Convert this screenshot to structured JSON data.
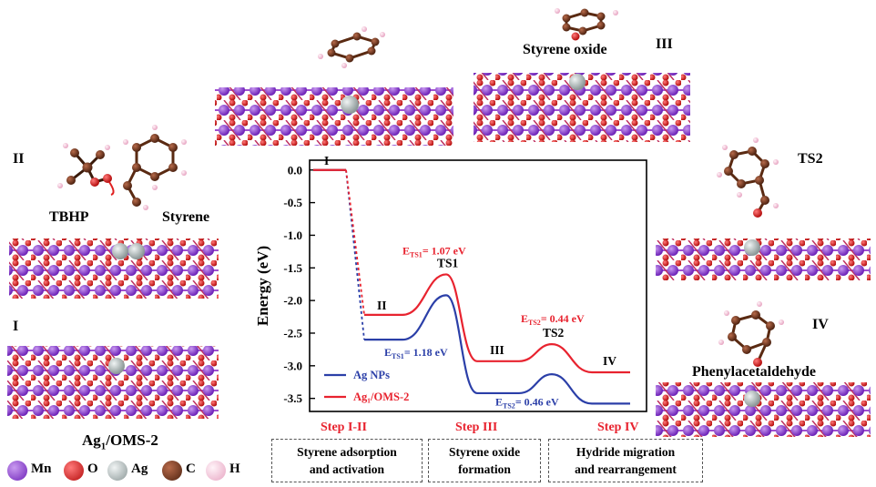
{
  "panels": {
    "I": "I",
    "II": "II",
    "III": "III",
    "IV": "IV",
    "TS2": "TS2",
    "tbhp": "TBHP",
    "styrene": "Styrene",
    "styrene_oxide": "Styrene oxide",
    "phenylacetaldehyde": "Phenylacetaldehyde",
    "catalyst": "Ag₁/OMS-2"
  },
  "steps": [
    {
      "label": "Step I-II",
      "desc1": "Styrene adsorption",
      "desc2": "and activation"
    },
    {
      "label": "Step III",
      "desc1": "Styrene oxide",
      "desc2": "formation"
    },
    {
      "label": "Step IV",
      "desc1": "Hydride migration",
      "desc2": "and rearrangement"
    }
  ],
  "atom_legend": [
    {
      "symbol": "Mn",
      "color": "#8a3fd1"
    },
    {
      "symbol": "O",
      "color": "#e02020"
    },
    {
      "symbol": "Ag",
      "color": "#a9b4b4"
    },
    {
      "symbol": "C",
      "color": "#7a3b22"
    },
    {
      "symbol": "H",
      "color": "#f4c6da"
    }
  ],
  "chart_data": {
    "type": "line",
    "ylabel": "Energy (eV)",
    "ylim": [
      -3.7,
      0.15
    ],
    "yticks": [
      "0.0",
      "-0.5",
      "-1.0",
      "-1.5",
      "-2.0",
      "-2.5",
      "-3.0",
      "-3.5"
    ],
    "series": [
      {
        "name": "Ag NPs",
        "color": "#2b3fa8",
        "points": [
          {
            "state": "I",
            "energy": 0.0
          },
          {
            "state": "II",
            "energy": -2.6
          },
          {
            "state": "TS1",
            "energy": -1.92
          },
          {
            "state": "III",
            "energy": -3.42
          },
          {
            "state": "TS2",
            "energy": -3.13
          },
          {
            "state": "IV",
            "energy": -3.58
          }
        ]
      },
      {
        "name": "Ag₁/OMS-2",
        "color": "#e8232f",
        "points": [
          {
            "state": "I",
            "energy": 0.0
          },
          {
            "state": "II",
            "energy": -2.22
          },
          {
            "state": "TS1",
            "energy": -1.6
          },
          {
            "state": "III",
            "energy": -2.93
          },
          {
            "state": "TS2",
            "energy": -2.67
          },
          {
            "state": "IV",
            "energy": -3.1
          }
        ]
      }
    ],
    "state_labels": [
      "I",
      "II",
      "TS1",
      "III",
      "TS2",
      "IV"
    ],
    "annotations": [
      {
        "text": "E",
        "sub": "TS1",
        "value": "= 1.07 eV",
        "series": "Ag₁/OMS-2"
      },
      {
        "text": "E",
        "sub": "TS1",
        "value": "= 1.18 eV",
        "series": "Ag NPs"
      },
      {
        "text": "E",
        "sub": "TS2",
        "value": "= 0.44 eV",
        "series": "Ag₁/OMS-2"
      },
      {
        "text": "E",
        "sub": "TS2",
        "value": "= 0.46 eV",
        "series": "Ag NPs"
      }
    ],
    "legend_position": "bottom-left",
    "grid": false
  }
}
